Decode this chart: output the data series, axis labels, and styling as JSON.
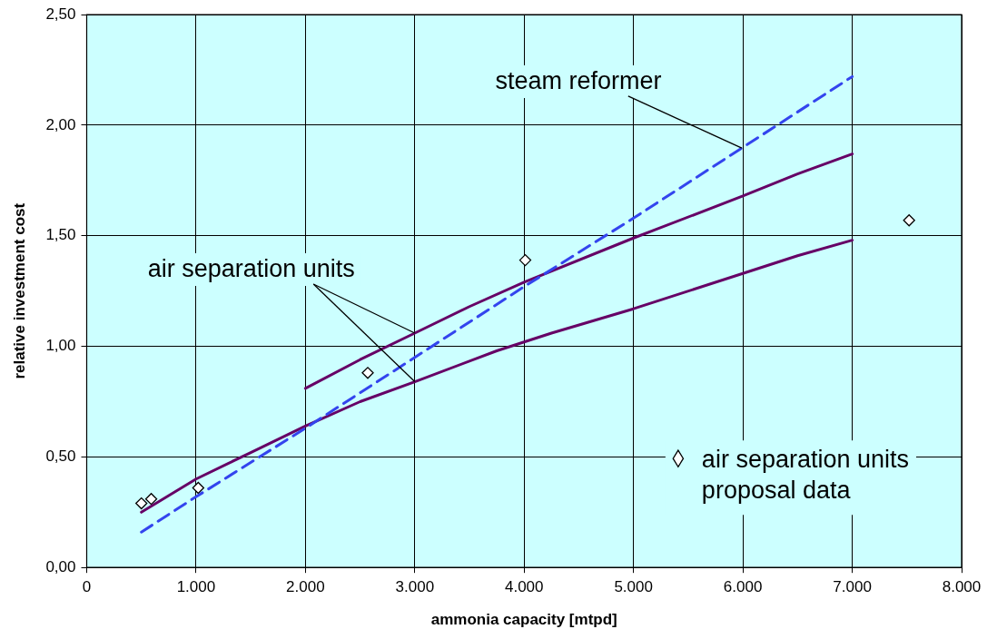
{
  "chart_data": {
    "type": "line",
    "xlabel": "ammonia capacity [mtpd]",
    "ylabel": "relative investment cost",
    "xlim": [
      0,
      8000
    ],
    "ylim": [
      0,
      2.5
    ],
    "xticks": [
      0,
      {
        "value": 1000,
        "label": "1.000"
      },
      {
        "value": 2000,
        "label": "2.000"
      },
      {
        "value": 3000,
        "label": "3.000"
      },
      {
        "value": 4000,
        "label": "4.000"
      },
      {
        "value": 5000,
        "label": "5.000"
      },
      {
        "value": 6000,
        "label": "6.000"
      },
      {
        "value": 7000,
        "label": "7.000"
      },
      {
        "value": 8000,
        "label": "8.000"
      }
    ],
    "yticks": [
      {
        "value": 0,
        "label": "0,00"
      },
      {
        "value": 0.5,
        "label": "0,50"
      },
      {
        "value": 1,
        "label": "1,00"
      },
      {
        "value": 1.5,
        "label": "1,50"
      },
      {
        "value": 2,
        "label": "2,00"
      },
      {
        "value": 2.5,
        "label": "2,50"
      }
    ],
    "grid": true,
    "legend": "bottom right",
    "series": [
      {
        "color": "#3344ee",
        "line_style": "dashed",
        "marker": "none",
        "x": [
          500,
          1000,
          2000,
          3000,
          4000,
          5000,
          6000,
          6500,
          7000
        ],
        "values": [
          0.16,
          0.32,
          0.63,
          0.95,
          1.27,
          1.58,
          1.9,
          2.06,
          2.22
        ]
      },
      {
        "color": "#660066",
        "line_style": "solid",
        "marker": "none",
        "x": [
          2000,
          2500,
          3000,
          3500,
          4000,
          5000,
          6000,
          6500,
          7000
        ],
        "values": [
          0.81,
          0.94,
          1.06,
          1.18,
          1.29,
          1.49,
          1.68,
          1.78,
          1.87
        ]
      },
      {
        "color": "#660066",
        "line_style": "solid",
        "marker": "none",
        "x": [
          500,
          1000,
          1500,
          2000,
          2500,
          3000,
          3750,
          4250,
          5000,
          6000,
          6500,
          7000
        ],
        "values": [
          0.25,
          0.4,
          0.52,
          0.64,
          0.75,
          0.84,
          0.98,
          1.06,
          1.17,
          1.33,
          1.41,
          1.48
        ]
      },
      {
        "type": "scatter",
        "name": "air separation units proposal data",
        "color": "#000000",
        "marker": "diamond",
        "x": [
          500,
          590,
          1020,
          2570,
          4010,
          7520
        ],
        "values": [
          0.29,
          0.31,
          0.36,
          0.88,
          1.39,
          1.57
        ]
      }
    ],
    "annotations": [
      {
        "text": "steam reformer",
        "x": 5990,
        "y": 1.91
      },
      {
        "text": "air separation units",
        "x": 3000,
        "y": 1.06
      }
    ]
  }
}
